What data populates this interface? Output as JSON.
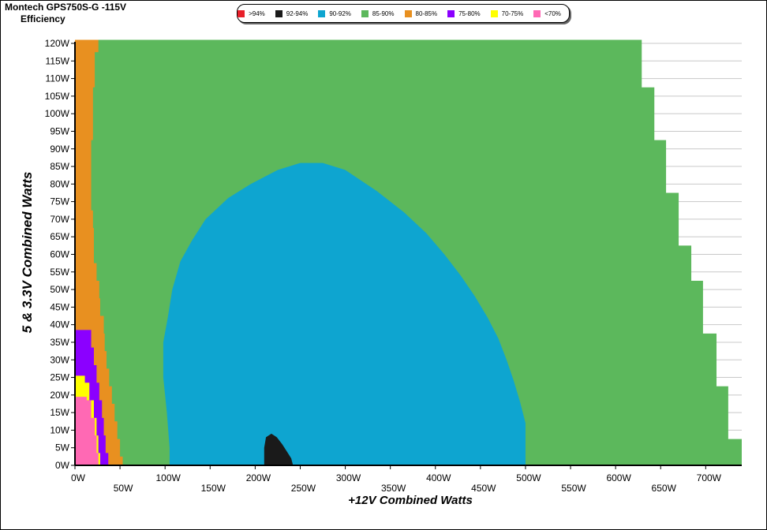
{
  "title": "Montech GPS750S-G -115V",
  "subtitle": "Efficiency",
  "legend": [
    {
      "label": ">94%",
      "color": "#e8202a"
    },
    {
      "label": "92-94%",
      "color": "#1a1a1a"
    },
    {
      "label": "90-92%",
      "color": "#0ea5d0"
    },
    {
      "label": "85-90%",
      "color": "#5cb85c"
    },
    {
      "label": "80-85%",
      "color": "#e89020"
    },
    {
      "label": "75-80%",
      "color": "#8b00ff"
    },
    {
      "label": "70-75%",
      "color": "#ffff00"
    },
    {
      "label": "<70%",
      "color": "#ff69b4"
    }
  ],
  "chart_data": {
    "type": "heatmap",
    "title": "Montech GPS750S-G -115V",
    "subtitle": "Efficiency",
    "xlabel": "+12V Combined Watts",
    "ylabel": "5 & 3.3V Combined Watts",
    "xlim": [
      0,
      740
    ],
    "ylim": [
      0,
      120
    ],
    "grid": "horizontal",
    "legend_position": "top",
    "x_ticks_upper": [
      "0W",
      "100W",
      "200W",
      "300W",
      "400W",
      "500W",
      "600W",
      "700W"
    ],
    "x_ticks_lower": [
      "50W",
      "150W",
      "250W",
      "350W",
      "450W",
      "550W",
      "650W"
    ],
    "y_ticks": [
      "0W",
      "5W",
      "10W",
      "15W",
      "20W",
      "25W",
      "30W",
      "35W",
      "40W",
      "45W",
      "50W",
      "55W",
      "60W",
      "65W",
      "70W",
      "75W",
      "80W",
      "85W",
      "90W",
      "95W",
      "100W",
      "105W",
      "110W",
      "115W",
      "120W"
    ],
    "max_x_by_y": [
      [
        0,
        740
      ],
      [
        5,
        740
      ],
      [
        10,
        725
      ],
      [
        15,
        725
      ],
      [
        20,
        725
      ],
      [
        25,
        712
      ],
      [
        30,
        712
      ],
      [
        35,
        712
      ],
      [
        40,
        697
      ],
      [
        45,
        697
      ],
      [
        50,
        697
      ],
      [
        55,
        684
      ],
      [
        60,
        684
      ],
      [
        65,
        670
      ],
      [
        70,
        670
      ],
      [
        75,
        670
      ],
      [
        80,
        656
      ],
      [
        85,
        656
      ],
      [
        90,
        656
      ],
      [
        95,
        643
      ],
      [
        100,
        643
      ],
      [
        105,
        643
      ],
      [
        110,
        629
      ],
      [
        115,
        629
      ],
      [
        120,
        629
      ]
    ],
    "band_85_90_start_x": [
      [
        0,
        53
      ],
      [
        5,
        50
      ],
      [
        10,
        47
      ],
      [
        15,
        44
      ],
      [
        20,
        41
      ],
      [
        25,
        38
      ],
      [
        30,
        35
      ],
      [
        35,
        33
      ],
      [
        40,
        32
      ],
      [
        45,
        28
      ],
      [
        50,
        27
      ],
      [
        55,
        24
      ],
      [
        60,
        21
      ],
      [
        65,
        21
      ],
      [
        70,
        20
      ],
      [
        75,
        18
      ],
      [
        80,
        18
      ],
      [
        85,
        18
      ],
      [
        90,
        18
      ],
      [
        95,
        20
      ],
      [
        100,
        20
      ],
      [
        105,
        20
      ],
      [
        110,
        22
      ],
      [
        115,
        22
      ],
      [
        120,
        26
      ]
    ],
    "band_80_85_start_x": [
      [
        0,
        0
      ],
      [
        120,
        0
      ]
    ],
    "band_75_80_points": [
      [
        0,
        37
      ],
      [
        5,
        34
      ],
      [
        10,
        32
      ],
      [
        15,
        30
      ],
      [
        20,
        27
      ],
      [
        25,
        24
      ],
      [
        30,
        21
      ],
      [
        35,
        18
      ],
      [
        40,
        0
      ]
    ],
    "band_70_75_points": [
      [
        0,
        28
      ],
      [
        5,
        26
      ],
      [
        10,
        24
      ],
      [
        15,
        21
      ],
      [
        20,
        16
      ],
      [
        25,
        11
      ],
      [
        27,
        0
      ]
    ],
    "band_lt70_points": [
      [
        0,
        26
      ],
      [
        5,
        24
      ],
      [
        10,
        22
      ],
      [
        15,
        18
      ],
      [
        20,
        13
      ],
      [
        21,
        0
      ]
    ],
    "band_90_92_outline": [
      [
        105,
        0
      ],
      [
        500,
        0
      ],
      [
        500,
        12
      ],
      [
        494,
        18
      ],
      [
        487,
        24
      ],
      [
        479,
        30
      ],
      [
        470,
        36
      ],
      [
        458,
        42
      ],
      [
        444,
        48
      ],
      [
        428,
        54
      ],
      [
        410,
        60
      ],
      [
        390,
        66
      ],
      [
        365,
        72
      ],
      [
        335,
        78
      ],
      [
        300,
        84
      ],
      [
        275,
        86
      ],
      [
        250,
        86
      ],
      [
        225,
        84
      ],
      [
        195,
        80
      ],
      [
        170,
        76
      ],
      [
        145,
        70
      ],
      [
        130,
        64
      ],
      [
        117,
        58
      ],
      [
        108,
        50
      ],
      [
        103,
        42
      ],
      [
        98,
        35
      ],
      [
        98,
        25
      ],
      [
        102,
        15
      ],
      [
        105,
        5
      ]
    ],
    "band_92_94_outline": [
      [
        210,
        0
      ],
      [
        242,
        0
      ],
      [
        240,
        2
      ],
      [
        235,
        4
      ],
      [
        230,
        6
      ],
      [
        224,
        8
      ],
      [
        218,
        9
      ],
      [
        212,
        8
      ],
      [
        210,
        5
      ]
    ]
  }
}
